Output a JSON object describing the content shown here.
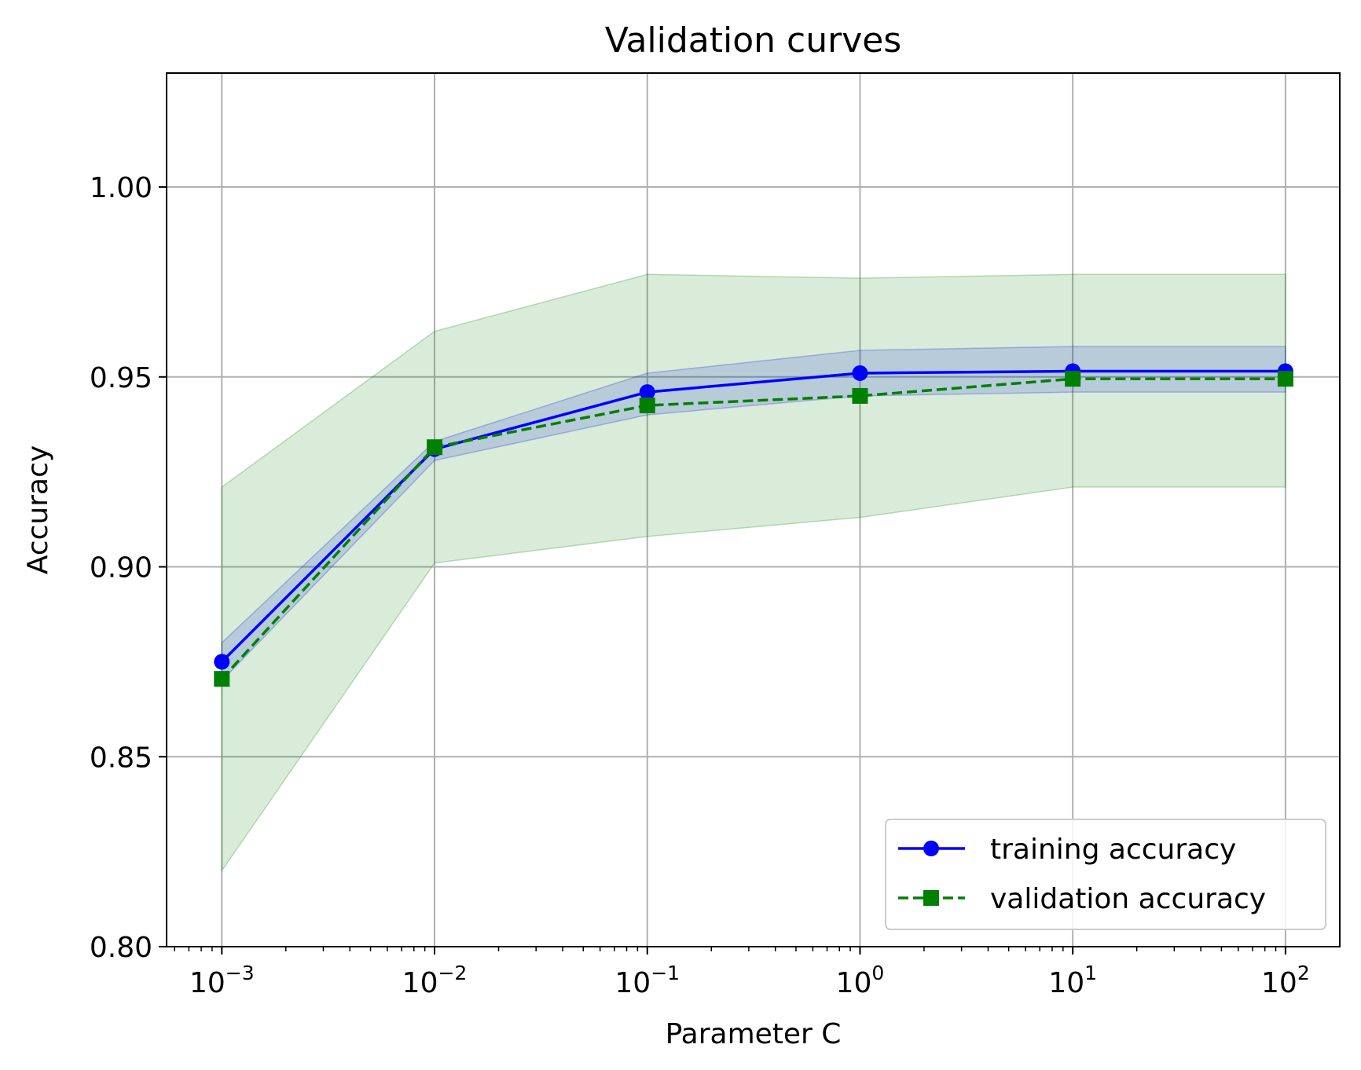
{
  "chart_data": {
    "type": "line",
    "title": "Validation curves",
    "xlabel": "Parameter C",
    "ylabel": "Accuracy",
    "x_scale": "log",
    "x": [
      0.001,
      0.01,
      0.1,
      1,
      10,
      100
    ],
    "x_tick_labels": [
      {
        "base": "10",
        "exp": "−3"
      },
      {
        "base": "10",
        "exp": "−2"
      },
      {
        "base": "10",
        "exp": "−1"
      },
      {
        "base": "10",
        "exp": "0"
      },
      {
        "base": "10",
        "exp": "1"
      },
      {
        "base": "10",
        "exp": "2"
      }
    ],
    "xlim": [
      0.00055,
      180
    ],
    "ylim": [
      0.8,
      1.03
    ],
    "y_ticks": [
      0.8,
      0.85,
      0.9,
      0.95,
      1.0
    ],
    "y_tick_labels": [
      "0.80",
      "0.85",
      "0.90",
      "0.95",
      "1.00"
    ],
    "grid": true,
    "legend_position": "lower right",
    "series": [
      {
        "name": "training accuracy",
        "color": "#0000ff",
        "band_color": "#0000ff",
        "band_opacity": 0.15,
        "line_style": "solid",
        "marker": "circle",
        "values": [
          0.875,
          0.931,
          0.946,
          0.951,
          0.9515,
          0.9515
        ],
        "band_upper": [
          0.88,
          0.933,
          0.951,
          0.957,
          0.958,
          0.958
        ],
        "band_lower": [
          0.87,
          0.928,
          0.94,
          0.945,
          0.946,
          0.946
        ]
      },
      {
        "name": "validation accuracy",
        "color": "#008000",
        "band_color": "#008000",
        "band_opacity": 0.15,
        "line_style": "dashed",
        "marker": "square",
        "values": [
          0.8705,
          0.9315,
          0.9425,
          0.945,
          0.9495,
          0.9495
        ],
        "band_upper": [
          0.921,
          0.962,
          0.977,
          0.976,
          0.977,
          0.977
        ],
        "band_lower": [
          0.82,
          0.901,
          0.908,
          0.913,
          0.921,
          0.921
        ]
      }
    ]
  }
}
